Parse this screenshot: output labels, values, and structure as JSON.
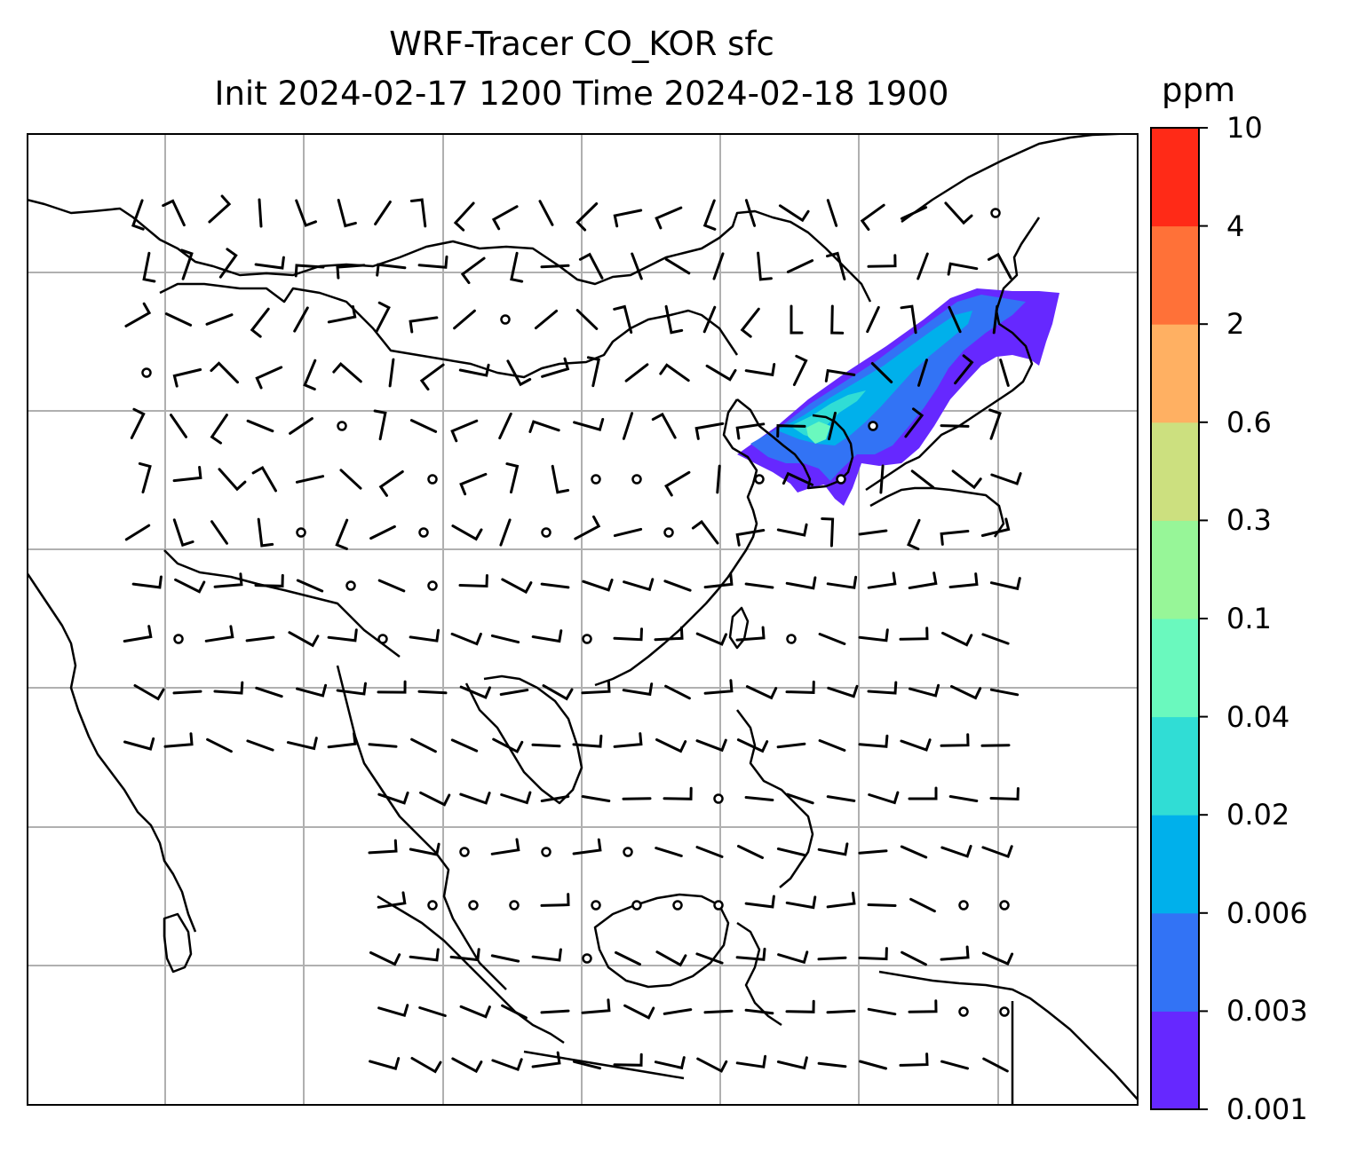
{
  "title": {
    "line1": "WRF-Tracer CO_KOR sfc",
    "line2": "Init 2024-02-17 1200 Time 2024-02-18 1900"
  },
  "colorbar": {
    "units": "ppm",
    "levels": [
      "0.001",
      "0.003",
      "0.006",
      "0.02",
      "0.04",
      "0.1",
      "0.3",
      "0.6",
      "2",
      "4",
      "10"
    ],
    "colors": [
      "#6628FF",
      "#3273F5",
      "#00B0EB",
      "#30DDD5",
      "#6AF9BE",
      "#97F698",
      "#CCE07F",
      "#FFB062",
      "#FF7138",
      "#FF2A17"
    ]
  },
  "map": {
    "background": "#ffffff",
    "coastline_color": "#000000",
    "gridline_color": "#b0b0b0",
    "plume_colors": {
      "outer": "#6628FF",
      "mid": "#3273F5",
      "inner": "#00B0EB",
      "core": "#30DDD5",
      "peak": "#6AF9BE"
    }
  }
}
